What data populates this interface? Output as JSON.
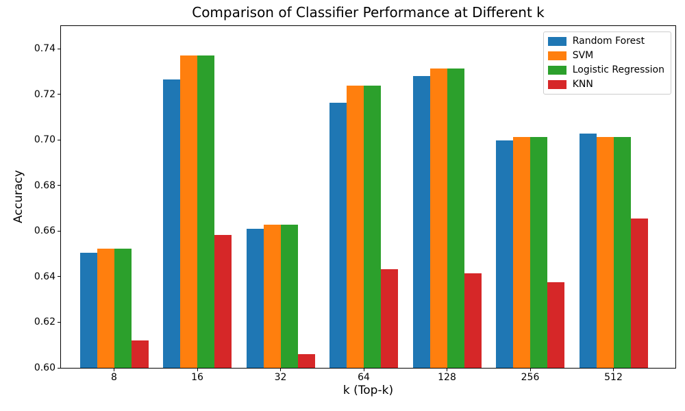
{
  "chart_data": {
    "type": "bar",
    "title": "Comparison of Classifier Performance at Different k",
    "xlabel": "k (Top-k)",
    "ylabel": "Accuracy",
    "categories": [
      "8",
      "16",
      "32",
      "64",
      "128",
      "256",
      "512"
    ],
    "series": [
      {
        "name": "Random Forest",
        "color": "#1f77b4",
        "values": [
          0.6506,
          0.7267,
          0.6611,
          0.7162,
          0.7281,
          0.6997,
          0.7028
        ]
      },
      {
        "name": "SVM",
        "color": "#ff7f0e",
        "values": [
          0.6523,
          0.737,
          0.6627,
          0.7238,
          0.7313,
          0.7013,
          0.7013
        ]
      },
      {
        "name": "Logistic Regression",
        "color": "#2ca02c",
        "values": [
          0.6522,
          0.737,
          0.6627,
          0.7238,
          0.7313,
          0.7013,
          0.7013
        ]
      },
      {
        "name": "KNN",
        "color": "#d62728",
        "values": [
          0.6119,
          0.6584,
          0.6061,
          0.6432,
          0.6416,
          0.6377,
          0.6656
        ]
      }
    ],
    "ylim": [
      0.6,
      0.75
    ],
    "yticks": [
      0.6,
      0.62,
      0.64,
      0.66,
      0.68,
      0.7,
      0.72,
      0.74
    ],
    "grid": false,
    "legend_position": "upper right",
    "background_color": "#ffffff",
    "spine_color": "#000000"
  }
}
